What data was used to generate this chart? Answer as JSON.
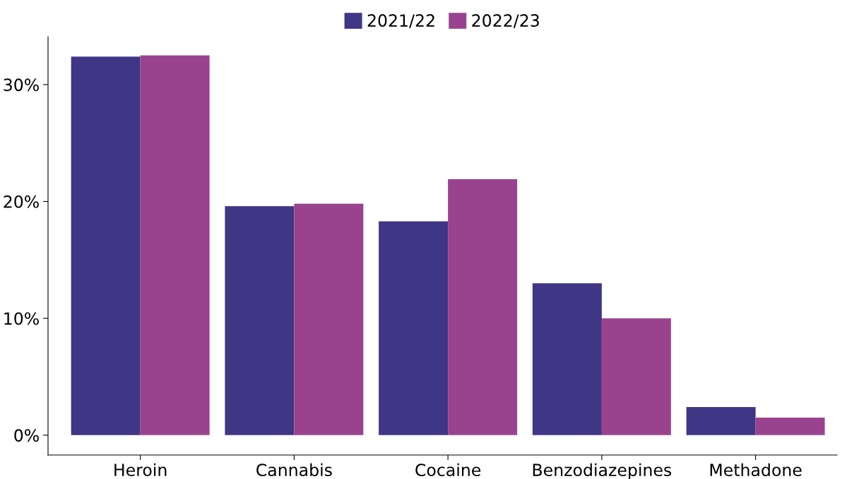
{
  "chart_data": {
    "type": "bar",
    "categories": [
      "Heroin",
      "Cannabis",
      "Cocaine",
      "Benzodiazepines",
      "Methadone"
    ],
    "series": [
      {
        "name": "2021/22",
        "color": "#3f3685",
        "values": [
          32.4,
          19.6,
          18.3,
          13.0,
          2.4
        ]
      },
      {
        "name": "2022/23",
        "color": "#99438e",
        "values": [
          32.5,
          19.8,
          21.9,
          10.0,
          1.5
        ]
      }
    ],
    "ylim": [
      -1.7,
      34.1
    ],
    "yticks": [
      {
        "value": 0,
        "label": "0%"
      },
      {
        "value": 10,
        "label": "10%"
      },
      {
        "value": 20,
        "label": "20%"
      },
      {
        "value": 30,
        "label": "30%"
      }
    ],
    "grid": false,
    "legend": "top"
  }
}
